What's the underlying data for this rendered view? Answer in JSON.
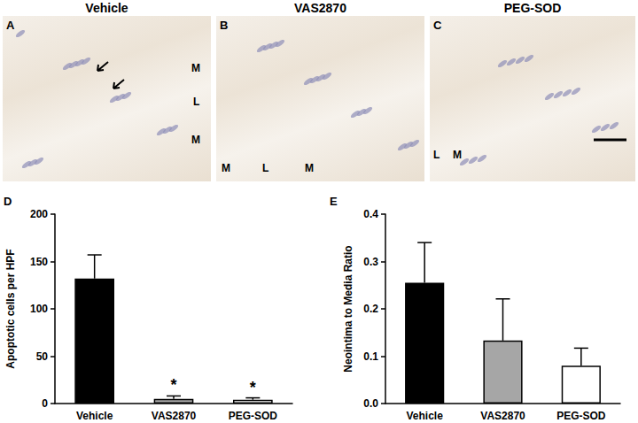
{
  "panels": [
    {
      "letter": "A",
      "title": "Vehicle",
      "labels": [
        "M",
        "L",
        "M"
      ]
    },
    {
      "letter": "B",
      "title": "VAS2870",
      "labels": [
        "M",
        "L",
        "M"
      ]
    },
    {
      "letter": "C",
      "title": "PEG-SOD",
      "labels": [
        "L",
        "M"
      ]
    }
  ],
  "chart_data": [
    {
      "type": "bar",
      "panel_label": "D",
      "ylabel": "Apoptotic cells per HPF",
      "categories": [
        "Vehicle",
        "VAS2870",
        "PEG-SOD"
      ],
      "values": [
        132,
        5,
        4
      ],
      "errors": [
        25,
        3,
        2
      ],
      "annotations": [
        null,
        "*",
        "*"
      ],
      "colors": [
        "#000000",
        "#a6a6a6",
        "#ffffff"
      ],
      "ylim": [
        0,
        200
      ],
      "yticks": [
        0,
        50,
        100,
        150,
        200
      ],
      "grid": false
    },
    {
      "type": "bar",
      "panel_label": "E",
      "ylabel": "Neointima to Media Ratio",
      "categories": [
        "Vehicle",
        "VAS2870",
        "PEG-SOD"
      ],
      "values": [
        0.255,
        0.133,
        0.08
      ],
      "errors": [
        0.085,
        0.088,
        0.037
      ],
      "colors": [
        "#000000",
        "#a6a6a6",
        "#ffffff"
      ],
      "ylim": [
        0,
        0.4
      ],
      "yticks": [
        {
          "value": 0,
          "label": "0.0"
        },
        0.1,
        0.2,
        0.3,
        0.4
      ],
      "grid": false
    }
  ]
}
